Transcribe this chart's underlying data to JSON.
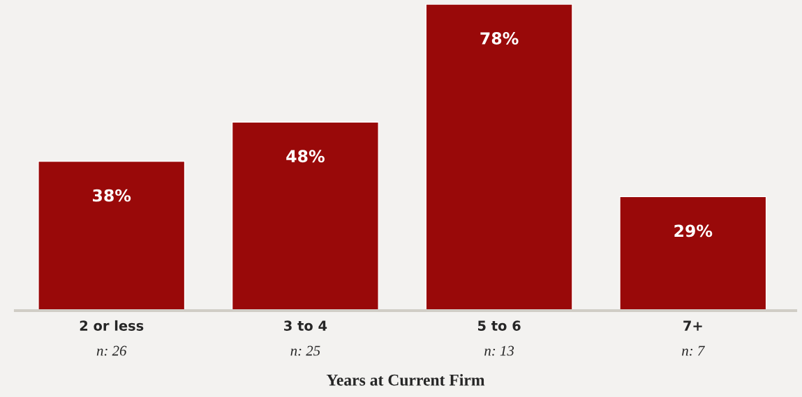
{
  "chart_data": {
    "type": "bar",
    "xlabel": "Years at Current Firm",
    "categories": [
      "2 or less",
      "3 to 4",
      "5 to 6",
      "7+"
    ],
    "values": [
      38,
      48,
      78,
      29
    ],
    "color": "#990909",
    "value_labels": [
      "38%",
      "48%",
      "78%",
      "29%"
    ],
    "ylim": [
      0,
      78
    ],
    "tick_labels": "x",
    "grid": false,
    "legend": false,
    "annotations": [
      "n: 26",
      "n: 25",
      "n: 13",
      "n: 7"
    ]
  }
}
